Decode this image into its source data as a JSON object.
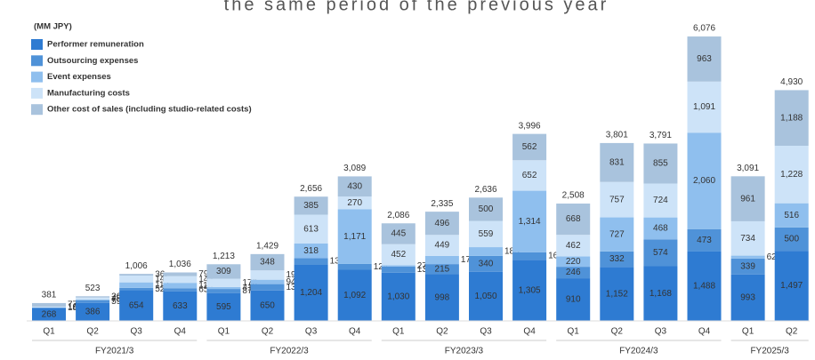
{
  "chart_data": {
    "type": "stacked-bar",
    "title": "the same period of the previous year",
    "unit": "(MM JPY)",
    "groups": [
      {
        "name": "FY2021/3",
        "categories": [
          "Q1",
          "Q2",
          "Q3",
          "Q4"
        ]
      },
      {
        "name": "FY2022/3",
        "categories": [
          "Q1",
          "Q2",
          "Q3",
          "Q4"
        ]
      },
      {
        "name": "FY2023/3",
        "categories": [
          "Q1",
          "Q2",
          "Q3",
          "Q4"
        ]
      },
      {
        "name": "FY2024/3",
        "categories": [
          "Q1",
          "Q2",
          "Q3",
          "Q4"
        ]
      },
      {
        "name": "FY2025/3",
        "categories": [
          "Q1",
          "Q2"
        ]
      }
    ],
    "series": [
      {
        "name": "Performer remuneration",
        "color": "#2e7bd2",
        "values": [
          268,
          386,
          654,
          633,
          595,
          650,
          1204,
          1092,
          1030,
          998,
          1050,
          1305,
          910,
          1152,
          1168,
          1488,
          993,
          1497
        ],
        "value_labels": [
          "268",
          "386",
          "654",
          "633",
          "595",
          "650",
          "1,204",
          "1,092",
          "1,030",
          "998",
          "1,050",
          "1,305",
          "910",
          "1,152",
          "1,168",
          "1,488",
          "993",
          "1,497"
        ]
      },
      {
        "name": "Outsourcing expenses",
        "color": "#4f92d8",
        "values": [
          18,
          59,
          52,
          65,
          87,
          136,
          134,
          124,
          130,
          215,
          340,
          161,
          246,
          332,
          574,
          473,
          339,
          500
        ],
        "value_labels": [
          "18",
          "59",
          "52",
          "65",
          "87",
          "136",
          "134",
          "124",
          "130",
          "215",
          "340",
          "161",
          "246",
          "332",
          "574",
          "473",
          "339",
          "500"
        ]
      },
      {
        "name": "Event expenses",
        "color": "#8fbfee",
        "values": [
          2,
          7,
          117,
          115,
          41,
          94,
          318,
          1171,
          27,
          175,
          185,
          1314,
          220,
          727,
          468,
          2060,
          62,
          516
        ],
        "value_labels": [
          null,
          "7",
          "117",
          "115",
          "41",
          "94",
          "318",
          "1,171",
          "27",
          "175",
          "185",
          "1,314",
          "220",
          "727",
          "468",
          "2,060",
          "62",
          "516"
        ]
      },
      {
        "name": "Manufacturing costs",
        "color": "#cde3f8",
        "values": [
          16,
          48,
          145,
          143,
          178,
          199,
          613,
          270,
          452,
          449,
          559,
          652,
          462,
          757,
          724,
          1091,
          734,
          1228
        ],
        "value_labels": [
          "16",
          "48",
          "145",
          "143",
          "178",
          "199",
          "613",
          "270",
          "452",
          "449",
          "559",
          "652",
          "462",
          "757",
          "724",
          "1,091",
          "734",
          "1,228"
        ]
      },
      {
        "name": "Other cost of sales (including studio-related costs)",
        "color": "#a9c3dd",
        "values": [
          77,
          26,
          36,
          79,
          309,
          348,
          385,
          430,
          445,
          496,
          500,
          562,
          668,
          831,
          855,
          963,
          961,
          1188
        ],
        "value_labels": [
          "77",
          "26",
          "36",
          "79",
          "309",
          "348",
          "385",
          "430",
          "445",
          "496",
          "500",
          "562",
          "668",
          "831",
          "855",
          "963",
          "961",
          "1,188"
        ]
      }
    ],
    "totals": [
      381,
      523,
      1006,
      1036,
      1213,
      1429,
      2656,
      3089,
      2086,
      2335,
      2636,
      3996,
      2508,
      3801,
      3791,
      6076,
      3091,
      4930
    ],
    "total_labels": [
      "381",
      "523",
      "1,006",
      "1,036",
      "1,213",
      "1,429",
      "2,656",
      "3,089",
      "2,086",
      "2,335",
      "2,636",
      "3,996",
      "2,508",
      "3,801",
      "3,791",
      "6,076",
      "3,091",
      "4,930"
    ]
  }
}
